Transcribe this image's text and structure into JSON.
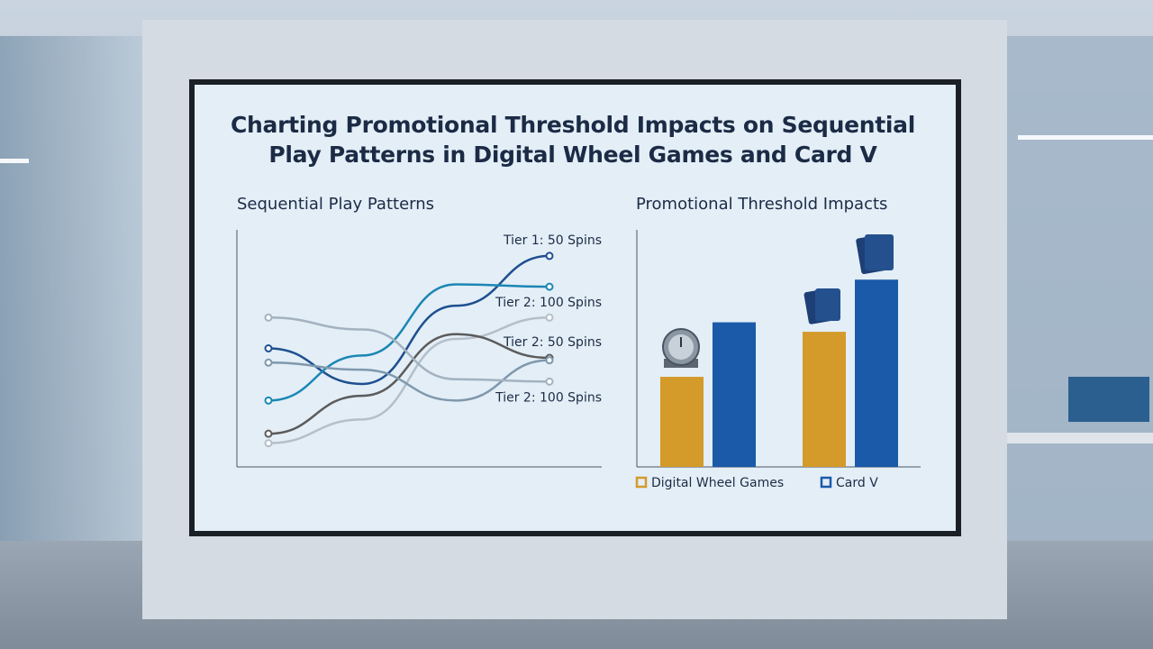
{
  "title": "Charting Promotional Threshold Impacts on Sequential Play Patterns in Digital Wheel Games and Card V",
  "chart_data": [
    {
      "type": "line",
      "title": "Sequential Play Patterns",
      "categories": [
        null,
        null,
        null,
        null
      ],
      "ylim": [
        0,
        100
      ],
      "series": [
        {
          "name": "Tier 1: 50 Spins",
          "color": "#1f4f8f",
          "values": [
            50,
            35,
            68,
            89
          ]
        },
        {
          "name": "Tier 2: 100 Spins",
          "color": "#1b86b4",
          "values": [
            28,
            47,
            77,
            76
          ]
        },
        {
          "color": "#b4bfc9",
          "values": [
            10,
            20,
            54,
            63
          ]
        },
        {
          "name": "Tier 2: 50 Spins",
          "color": "#5b5b5b",
          "values": [
            14,
            30,
            56,
            46
          ]
        },
        {
          "color": "#7f98ad",
          "values": [
            44,
            41,
            28,
            45
          ]
        },
        {
          "name": "Tier 2: 100 Spins",
          "color": "#a3b2c0",
          "values": [
            63,
            58,
            37,
            36
          ]
        }
      ]
    },
    {
      "type": "bar",
      "title": "Promotional Threshold Impacts",
      "categories": [
        null,
        null
      ],
      "ylim": [
        0,
        100
      ],
      "legend": "bottom",
      "series": [
        {
          "name": "Digital Wheel Games",
          "color": "#d49a2a",
          "values": [
            38,
            57
          ]
        },
        {
          "name": "Card V",
          "color": "#1a5aa8",
          "values": [
            61,
            79
          ]
        }
      ]
    }
  ]
}
